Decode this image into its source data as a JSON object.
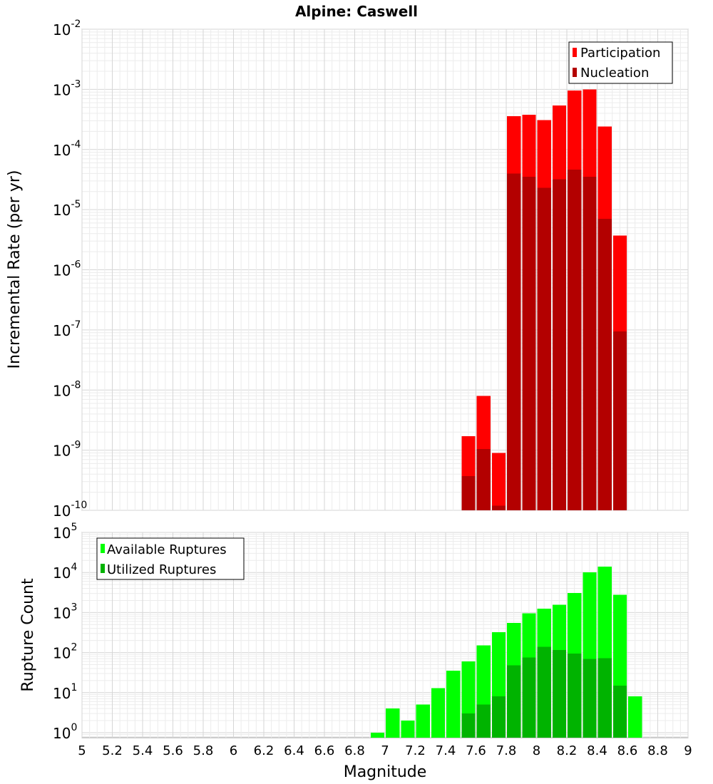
{
  "chart_data": [
    {
      "type": "bar",
      "title": "Alpine: Caswell",
      "xlabel": "",
      "ylabel": "Incremental Rate (per yr)",
      "yscale": "log",
      "ylim": [
        1e-10,
        0.01
      ],
      "xlim": [
        5,
        9
      ],
      "grid": true,
      "legend_position": "top-right",
      "x": [
        7.55,
        7.65,
        7.75,
        7.85,
        7.95,
        8.05,
        8.15,
        8.25,
        8.35,
        8.45,
        8.55
      ],
      "series": [
        {
          "name": "Participation",
          "color": "#ff0000",
          "values": [
            1.7e-09,
            8e-09,
            9e-10,
            0.00036,
            0.00038,
            0.00031,
            0.00054,
            0.00096,
            0.001,
            0.00024,
            3.7e-06
          ]
        },
        {
          "name": "Nucleation",
          "color": "#b30000",
          "values": [
            3.7e-10,
            1.05e-09,
            1.2e-10,
            4e-05,
            3.5e-05,
            2.3e-05,
            3.2e-05,
            4.6e-05,
            3.5e-05,
            7e-06,
            9.5e-08
          ]
        }
      ]
    },
    {
      "type": "bar",
      "title": "",
      "xlabel": "Magnitude",
      "ylabel": "Rupture Count",
      "yscale": "log",
      "ylim": [
        0.75,
        100000
      ],
      "xlim": [
        5,
        9
      ],
      "grid": true,
      "legend_position": "top-left",
      "x": [
        6.95,
        7.05,
        7.15,
        7.25,
        7.35,
        7.45,
        7.55,
        7.65,
        7.75,
        7.85,
        7.95,
        8.05,
        8.15,
        8.25,
        8.35,
        8.45,
        8.55,
        8.65
      ],
      "series": [
        {
          "name": "Available Ruptures",
          "color": "#00ff00",
          "values": [
            1,
            4,
            2,
            5,
            13,
            35,
            60,
            150,
            320,
            550,
            950,
            1250,
            1550,
            3100,
            10000,
            14000,
            2800,
            8
          ]
        },
        {
          "name": "Utilized Ruptures",
          "color": "#00b300",
          "values": [
            null,
            null,
            null,
            null,
            null,
            null,
            3,
            5,
            8,
            48,
            75,
            140,
            115,
            95,
            70,
            72,
            15,
            null
          ]
        }
      ],
      "x_ticks": [
        "5",
        "5.2",
        "5.4",
        "5.6",
        "5.8",
        "6",
        "6.2",
        "6.4",
        "6.6",
        "6.8",
        "7",
        "7.2",
        "7.4",
        "7.6",
        "7.8",
        "8",
        "8.2",
        "8.4",
        "8.6",
        "8.8",
        "9"
      ]
    }
  ]
}
